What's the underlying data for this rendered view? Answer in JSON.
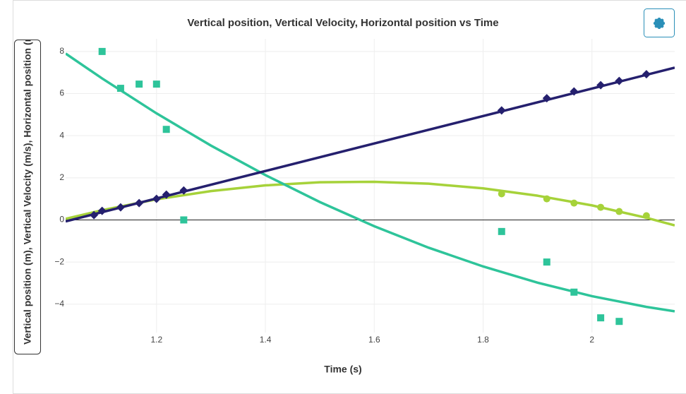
{
  "chart_data": {
    "type": "scatter",
    "title": "Vertical position, Vertical Velocity, Horizontal position vs Time",
    "x_label": "Time (s)",
    "y_label": "Vertical position (m), Vertical Velocity (m/s), Horizontal position (m)",
    "xlim": [
      1.033,
      2.152
    ],
    "ylim": [
      -5.35,
      8.6
    ],
    "xticks": [
      1.2,
      1.4,
      1.6,
      1.8,
      2
    ],
    "yticks": [
      {
        "value": -4,
        "label": "−4"
      },
      {
        "value": -2,
        "label": "−2"
      },
      0,
      2,
      4,
      6,
      8
    ],
    "grid": true,
    "series": [
      {
        "color": "#a6d23a",
        "marker": "circle",
        "x": [
          1.834,
          1.917,
          1.967,
          2.016,
          2.05,
          2.1
        ],
        "values": [
          1.24,
          1.0,
          0.8,
          0.6,
          0.4,
          0.2
        ],
        "fit": {
          "x": [
            1.033,
            1.1,
            1.2,
            1.3,
            1.4,
            1.5,
            1.6,
            1.7,
            1.8,
            1.9,
            2.0,
            2.1,
            2.152
          ],
          "values": [
            0.05,
            0.46,
            0.98,
            1.37,
            1.64,
            1.79,
            1.81,
            1.72,
            1.5,
            1.15,
            0.69,
            0.1,
            -0.26
          ]
        }
      },
      {
        "color": "#2ec49a",
        "marker": "square",
        "x": [
          1.1,
          1.134,
          1.168,
          1.2,
          1.218,
          1.25,
          1.834,
          1.917,
          1.967,
          2.016,
          2.05
        ],
        "values": [
          8,
          6.25,
          6.45,
          6.45,
          4.3,
          0,
          -0.55,
          -2.0,
          -3.43,
          -4.65,
          -4.82
        ],
        "fit": {
          "x": [
            1.033,
            1.1,
            1.2,
            1.3,
            1.4,
            1.5,
            1.6,
            1.7,
            1.8,
            1.9,
            2.0,
            2.1,
            2.152
          ],
          "values": [
            7.9,
            6.72,
            5.06,
            3.53,
            2.13,
            0.85,
            -0.3,
            -1.32,
            -2.21,
            -2.98,
            -3.62,
            -4.13,
            -4.34
          ]
        }
      },
      {
        "color": "#25206e",
        "marker": "diamond",
        "x": [
          1.085,
          1.1,
          1.134,
          1.168,
          1.2,
          1.218,
          1.25,
          1.834,
          1.917,
          1.967,
          2.016,
          2.05,
          2.1
        ],
        "values": [
          0.23,
          0.43,
          0.6,
          0.8,
          1.0,
          1.2,
          1.4,
          5.2,
          5.78,
          6.1,
          6.4,
          6.6,
          6.92
        ],
        "fit": {
          "x": [
            1.033,
            2.152
          ],
          "values": [
            -0.07,
            7.23
          ]
        }
      }
    ]
  }
}
